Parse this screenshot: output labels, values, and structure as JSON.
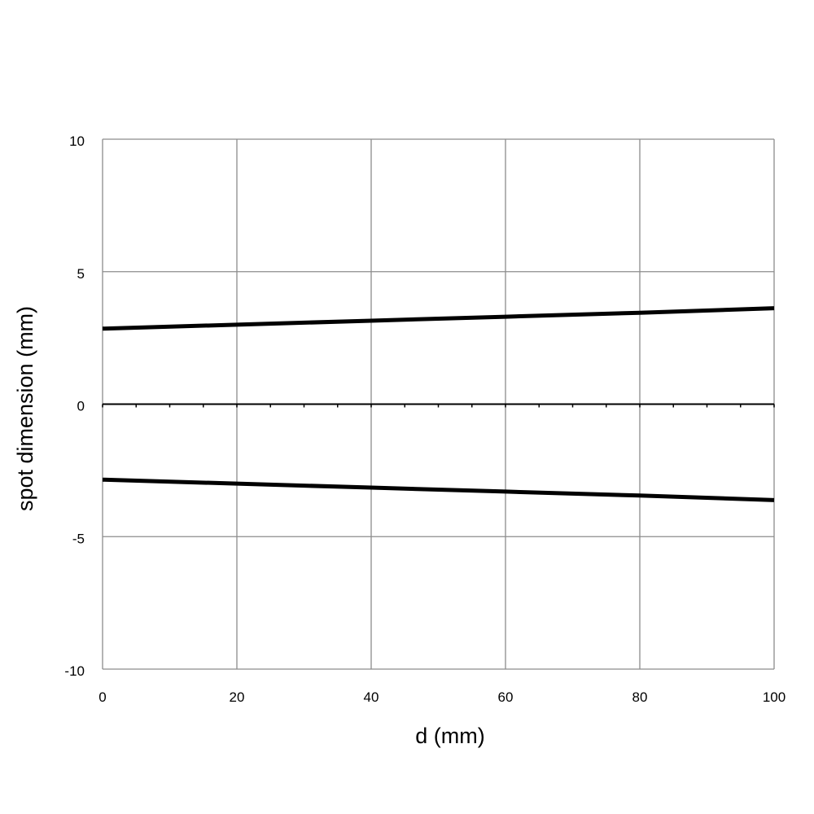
{
  "chart_data": {
    "type": "line",
    "xlabel": "d (mm)",
    "ylabel": "spot dimension (mm)",
    "xlim": [
      0,
      100
    ],
    "ylim": [
      -10,
      10
    ],
    "x_ticks": [
      "0",
      "20",
      "40",
      "60",
      "80",
      "100"
    ],
    "y_ticks": [
      "10",
      "5",
      "0",
      "-5",
      "-10"
    ],
    "x_tick_values": [
      0,
      20,
      40,
      60,
      80,
      100
    ],
    "y_tick_values": [
      10,
      5,
      0,
      -5,
      -10
    ],
    "minor_tick_step": 5,
    "grid": true,
    "legend": "none",
    "series": [
      {
        "color": "#000000",
        "x": [
          0,
          20,
          40,
          60,
          80,
          100
        ],
        "y": [
          2.85,
          3.0,
          3.15,
          3.3,
          3.45,
          3.62
        ]
      },
      {
        "color": "#000000",
        "x": [
          0,
          20,
          40,
          60,
          80,
          100
        ],
        "y": [
          -2.85,
          -3.0,
          -3.15,
          -3.3,
          -3.45,
          -3.62
        ]
      }
    ]
  },
  "colors": {
    "grid": "#8c8c8c",
    "line": "#000000",
    "background": "#ffffff"
  }
}
